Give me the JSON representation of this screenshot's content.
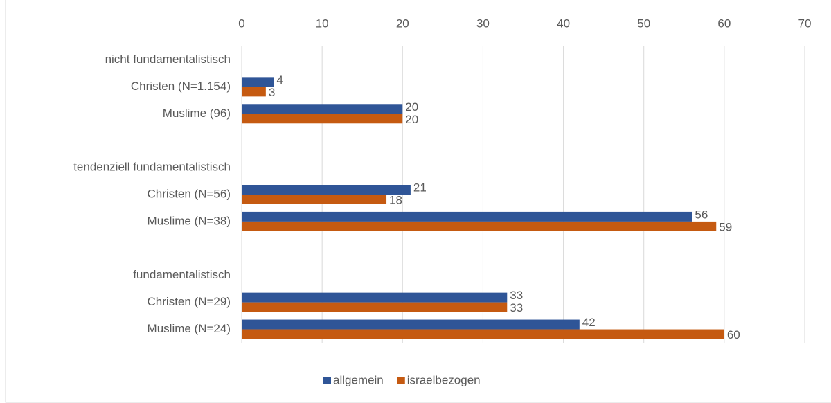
{
  "chart_data": {
    "type": "bar",
    "orientation": "horizontal",
    "categories": [
      "nicht fundamentalistisch",
      "Christen (N=1.154)",
      "Muslime (96)",
      null,
      "tendenziell fundamentalistisch",
      "Christen (N=56)",
      "Muslime (N=38)",
      null,
      "fundamentalistisch",
      "Christen (N=29)",
      "Muslime (N=24)"
    ],
    "series": [
      {
        "name": "allgemein",
        "color": "#2f5597",
        "values": [
          null,
          4,
          20,
          null,
          null,
          21,
          56,
          null,
          null,
          33,
          42
        ]
      },
      {
        "name": "israelbezogen",
        "color": "#c55a11",
        "values": [
          null,
          3,
          20,
          null,
          null,
          18,
          59,
          null,
          null,
          33,
          60
        ]
      }
    ],
    "xlim": [
      0,
      70
    ],
    "xticks": [
      0,
      10,
      20,
      30,
      40,
      50,
      60,
      70
    ],
    "grid": true,
    "legend": "bottom"
  }
}
